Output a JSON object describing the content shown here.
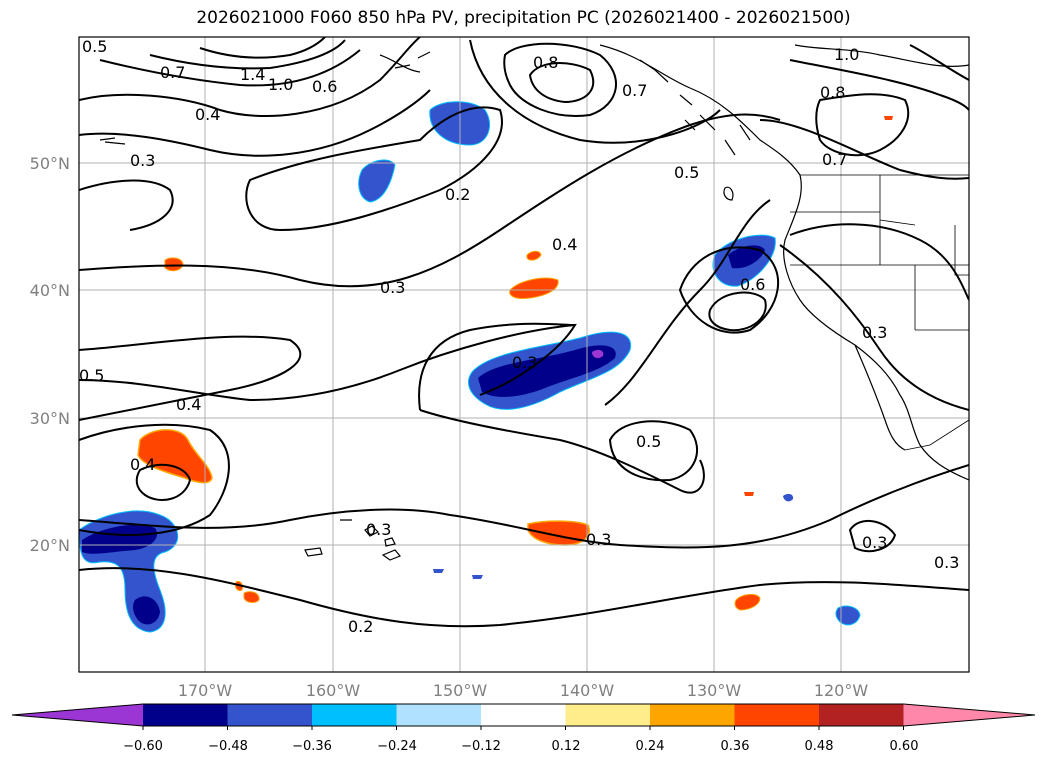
{
  "title": "2026021000 F060 850 hPa PV, precipitation PC (2026021400 - 2026021500)",
  "map": {
    "lon_range": [
      -180,
      -110
    ],
    "lat_range": [
      10,
      60
    ],
    "lat_ticks": [
      "50°N",
      "40°N",
      "30°N",
      "20°N"
    ],
    "lon_ticks": [
      "170°W",
      "160°W",
      "150°W",
      "140°W",
      "130°W",
      "120°W"
    ],
    "gridlines": true
  },
  "contour_labels": [
    "0.5",
    "0.7",
    "1.4",
    "1.0",
    "0.6",
    "0.4",
    "0.3",
    "0.2",
    "0.8",
    "0.7",
    "1.0",
    "0.8",
    "0.7",
    "0.5",
    "0.4",
    "0.3",
    "0.6",
    "0.3",
    "0.3",
    "0.5",
    "0.4",
    "0.4",
    "0.5",
    "0.3",
    "0.3",
    "0.2",
    "0.3",
    "0.3"
  ],
  "colorbar": {
    "ticks": [
      "−0.60",
      "−0.48",
      "−0.36",
      "−0.24",
      "−0.12",
      "0.12",
      "0.24",
      "0.36",
      "0.48",
      "0.60"
    ],
    "colors": [
      "#9b35d3",
      "#00008b",
      "#3354cc",
      "#00bfff",
      "#b0e2ff",
      "#ffffff",
      "#ffec8b",
      "#ffa500",
      "#ff4500",
      "#b22222",
      "#ff88aa"
    ],
    "extend": "both"
  }
}
